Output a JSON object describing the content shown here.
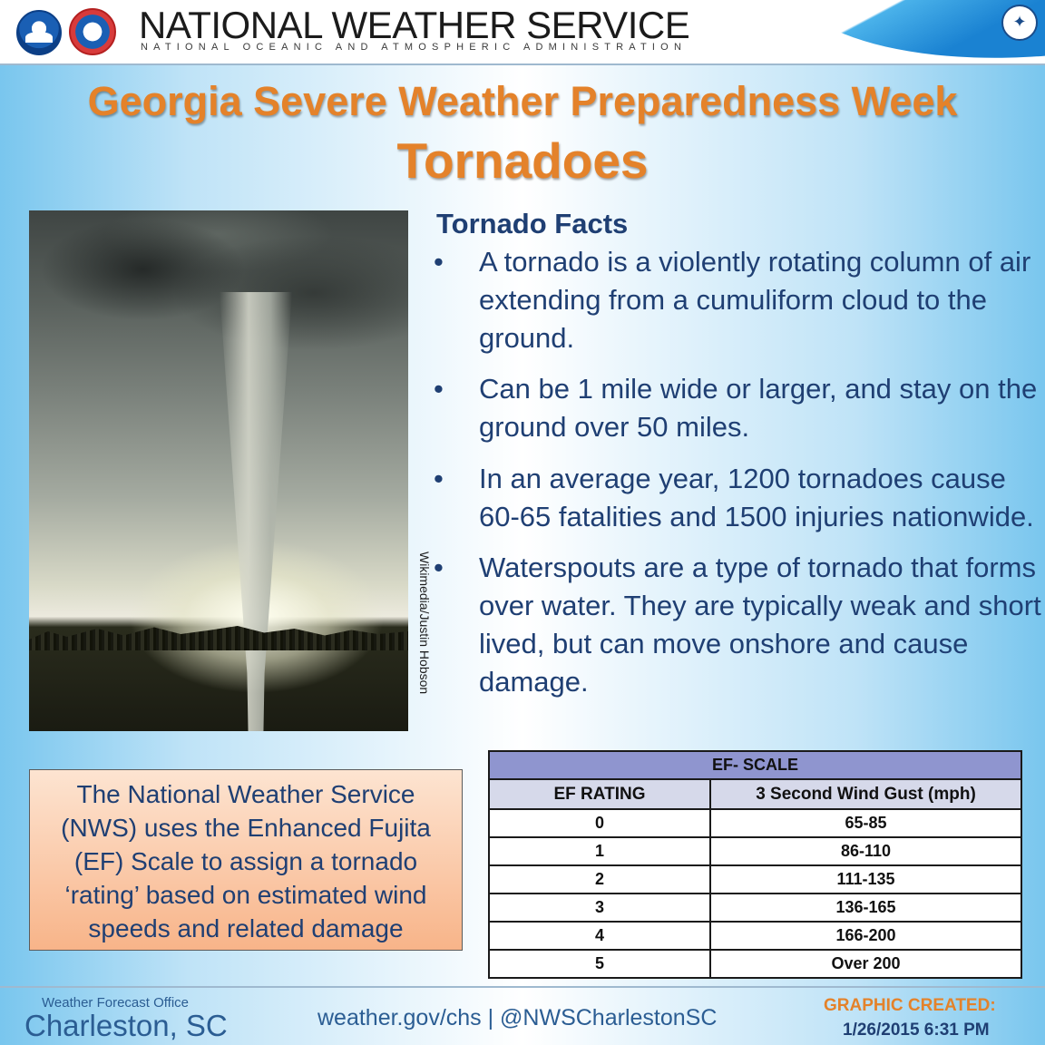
{
  "header": {
    "agency_title": "NATIONAL WEATHER SERVICE",
    "agency_subtitle": "NATIONAL OCEANIC AND ATMOSPHERIC ADMINISTRATION",
    "logos": [
      "noaa-logo",
      "nws-logo",
      "doc-logo"
    ]
  },
  "title": {
    "main": "Georgia Severe Weather Preparedness Week",
    "sub": "Tornadoes"
  },
  "photo": {
    "credit": "Wikimedia/Justin Hobson"
  },
  "facts": {
    "heading": "Tornado Facts",
    "bullet": "•",
    "items": [
      "A tornado is a violently rotating column of air extending from a cumuliform cloud to the ground.",
      "Can be 1 mile wide or larger, and stay on the ground over 50 miles.",
      "In an average year, 1200 tornadoes cause 60-65 fatalities and 1500 injuries nationwide.",
      "Waterspouts are a type of tornado that forms over water. They are typically weak and short lived, but can move onshore and cause damage."
    ]
  },
  "info_box": {
    "text": "The National Weather Service (NWS) uses the Enhanced Fujita (EF) Scale to assign a tornado ‘rating’ based on estimated wind speeds and related damage"
  },
  "ef_scale": {
    "title": "EF- SCALE",
    "headers": [
      "EF RATING",
      "3 Second Wind Gust (mph)"
    ],
    "rows": [
      [
        "0",
        "65-85"
      ],
      [
        "1",
        "86-110"
      ],
      [
        "2",
        "111-135"
      ],
      [
        "3",
        "136-165"
      ],
      [
        "4",
        "166-200"
      ],
      [
        "5",
        "Over 200"
      ]
    ]
  },
  "footer": {
    "office_label": "Weather Forecast Office",
    "office_name": "Charleston, SC",
    "links": "weather.gov/chs | @NWSCharlestonSC",
    "created_label": "GRAPHIC CREATED:",
    "created_date": "1/26/2015 6:31 PM"
  },
  "colors": {
    "title_orange": "#e4822a",
    "text_navy": "#1f3f73",
    "table_title_bg": "#8f95cf"
  }
}
